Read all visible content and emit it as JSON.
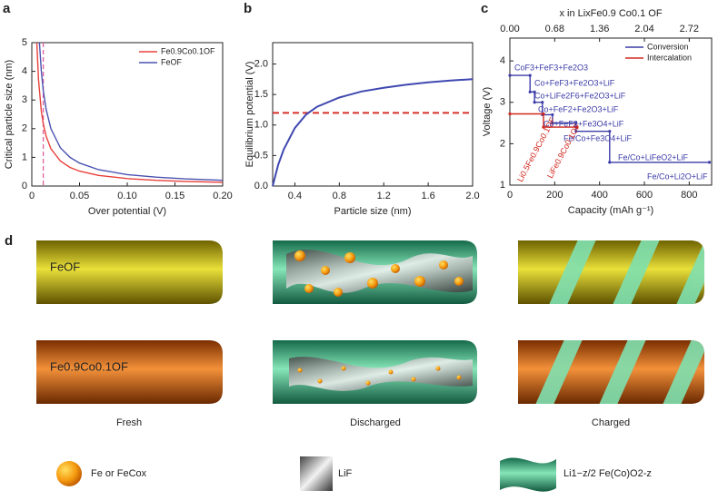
{
  "chart_data": [
    {
      "type": "line",
      "panel_label": "a",
      "xlabel": "Over potential (V)",
      "ylabel": "Critical particle size (nm)",
      "xlim": [
        0,
        0.2
      ],
      "ylim": [
        0,
        5
      ],
      "xticks": [
        0,
        0.05,
        {
          "value": 0.1,
          "label": "0.10"
        },
        0.15,
        {
          "value": 0.2,
          "label": "0.20"
        }
      ],
      "yticks": [
        0,
        1,
        2,
        3,
        4,
        5
      ],
      "legend": "top-right",
      "vline": 0.012,
      "vline_color": "#e060a0",
      "series": [
        {
          "name": "Fe0.9Co0.1OF",
          "color": "#e8403a",
          "x": [
            0.0052,
            0.007,
            0.01,
            0.012,
            0.015,
            0.02,
            0.03,
            0.04,
            0.05,
            0.07,
            0.1,
            0.13,
            0.16,
            0.2
          ],
          "values": [
            5.0,
            3.7,
            2.6,
            2.17,
            1.73,
            1.3,
            0.87,
            0.65,
            0.52,
            0.37,
            0.26,
            0.2,
            0.16,
            0.13
          ]
        },
        {
          "name": "FeOF",
          "color": "#4a52b0",
          "x": [
            0.008,
            0.01,
            0.012,
            0.015,
            0.02,
            0.03,
            0.04,
            0.05,
            0.07,
            0.1,
            0.13,
            0.16,
            0.2
          ],
          "values": [
            5.0,
            4.0,
            3.33,
            2.67,
            2.0,
            1.33,
            1.0,
            0.8,
            0.57,
            0.4,
            0.31,
            0.25,
            0.2
          ]
        }
      ]
    },
    {
      "type": "line",
      "panel_label": "b",
      "xlabel": "Particle size (nm)",
      "ylabel": "Equilibrium potential (V)",
      "xlim": [
        0.2,
        2.0
      ],
      "ylim": [
        0,
        2.35
      ],
      "xticks": [
        0.4,
        0.8,
        1.2,
        1.6,
        {
          "value": 2.0,
          "label": "2.0"
        }
      ],
      "yticks": [
        {
          "value": 0,
          "label": "0.0"
        },
        0.5,
        {
          "value": 1,
          "label": "1.0"
        },
        1.5,
        {
          "value": 2,
          "label": "2.0"
        }
      ],
      "hline": 1.2,
      "hline_color": "#d8302a",
      "series": [
        {
          "color": "#3f48b0",
          "x": [
            0.2,
            0.25,
            0.3,
            0.4,
            0.5,
            0.6,
            0.8,
            1.0,
            1.2,
            1.4,
            1.6,
            1.8,
            2.0
          ],
          "values": [
            0,
            0.35,
            0.6,
            0.95,
            1.17,
            1.3,
            1.45,
            1.55,
            1.61,
            1.66,
            1.7,
            1.73,
            1.75
          ]
        }
      ]
    },
    {
      "type": "step",
      "panel_label": "c",
      "xlabel": "Capacity (mAh g⁻¹)",
      "ylabel": "Voltage (V)",
      "x2label": "x in LixFe0.9 Co0.1 OF",
      "xlim": [
        0,
        900
      ],
      "ylim": [
        1,
        4.55
      ],
      "x2lim": [
        0,
        3.06
      ],
      "xticks": [
        0,
        200,
        400,
        600,
        800
      ],
      "yticks": [
        1,
        2,
        3,
        4
      ],
      "x2ticks": [
        {
          "value": 0,
          "label": "0.00"
        },
        0.68,
        1.36,
        2.04,
        2.72
      ],
      "legend": "top-right",
      "series": [
        {
          "name": "Conversion",
          "color": "#3c3ca8",
          "x": [
            0,
            90,
            90,
            110,
            110,
            145,
            145,
            190,
            190,
            295,
            295,
            445,
            445,
            890
          ],
          "values": [
            3.65,
            3.65,
            3.25,
            3.25,
            3.0,
            3.0,
            2.7,
            2.7,
            2.5,
            2.5,
            2.3,
            2.3,
            1.55,
            1.55
          ]
        },
        {
          "name": "Intercalation",
          "color": "#d0281e",
          "x": [
            0,
            150,
            150,
            300
          ],
          "values": [
            2.72,
            2.72,
            2.4,
            2.4
          ]
        }
      ],
      "annotations": [
        {
          "text": "CoF3+FeF3+Fe2O3",
          "color": "#3c3ca8"
        },
        {
          "text": "Co+FeF3+Fe2O3+LiF",
          "color": "#3c3ca8"
        },
        {
          "text": "Co+LiFe2F6+Fe2O3+LiF",
          "color": "#3c3ca8"
        },
        {
          "text": "Co+FeF2+Fe2O3+LiF",
          "color": "#3c3ca8"
        },
        {
          "text": "Co+FeF2+Fe3O4+LiF",
          "color": "#3c3ca8"
        },
        {
          "text": "Fe/Co+Fe3O4+LiF",
          "color": "#3c3ca8"
        },
        {
          "text": "Fe/Co+LiFeO2+LiF",
          "color": "#3c3ca8"
        },
        {
          "text": "Fe/Co+Li2O+LiF",
          "color": "#3c3ca8"
        },
        {
          "text": "Li0.5Fe0.9Co0.1OF",
          "color": "#d0281e"
        },
        {
          "text": "LiFe0.9Co0.1OF",
          "color": "#d0281e"
        }
      ]
    }
  ],
  "diagram": {
    "panel_label": "d",
    "rows": [
      "FeOF",
      "Fe0.9Co0.1OF"
    ],
    "columns": [
      "Fresh",
      "Discharged",
      "Charged"
    ],
    "legend": [
      "Fe or FeCox",
      "LiF",
      "Li1−z/2 Fe(Co)O2-z"
    ]
  }
}
